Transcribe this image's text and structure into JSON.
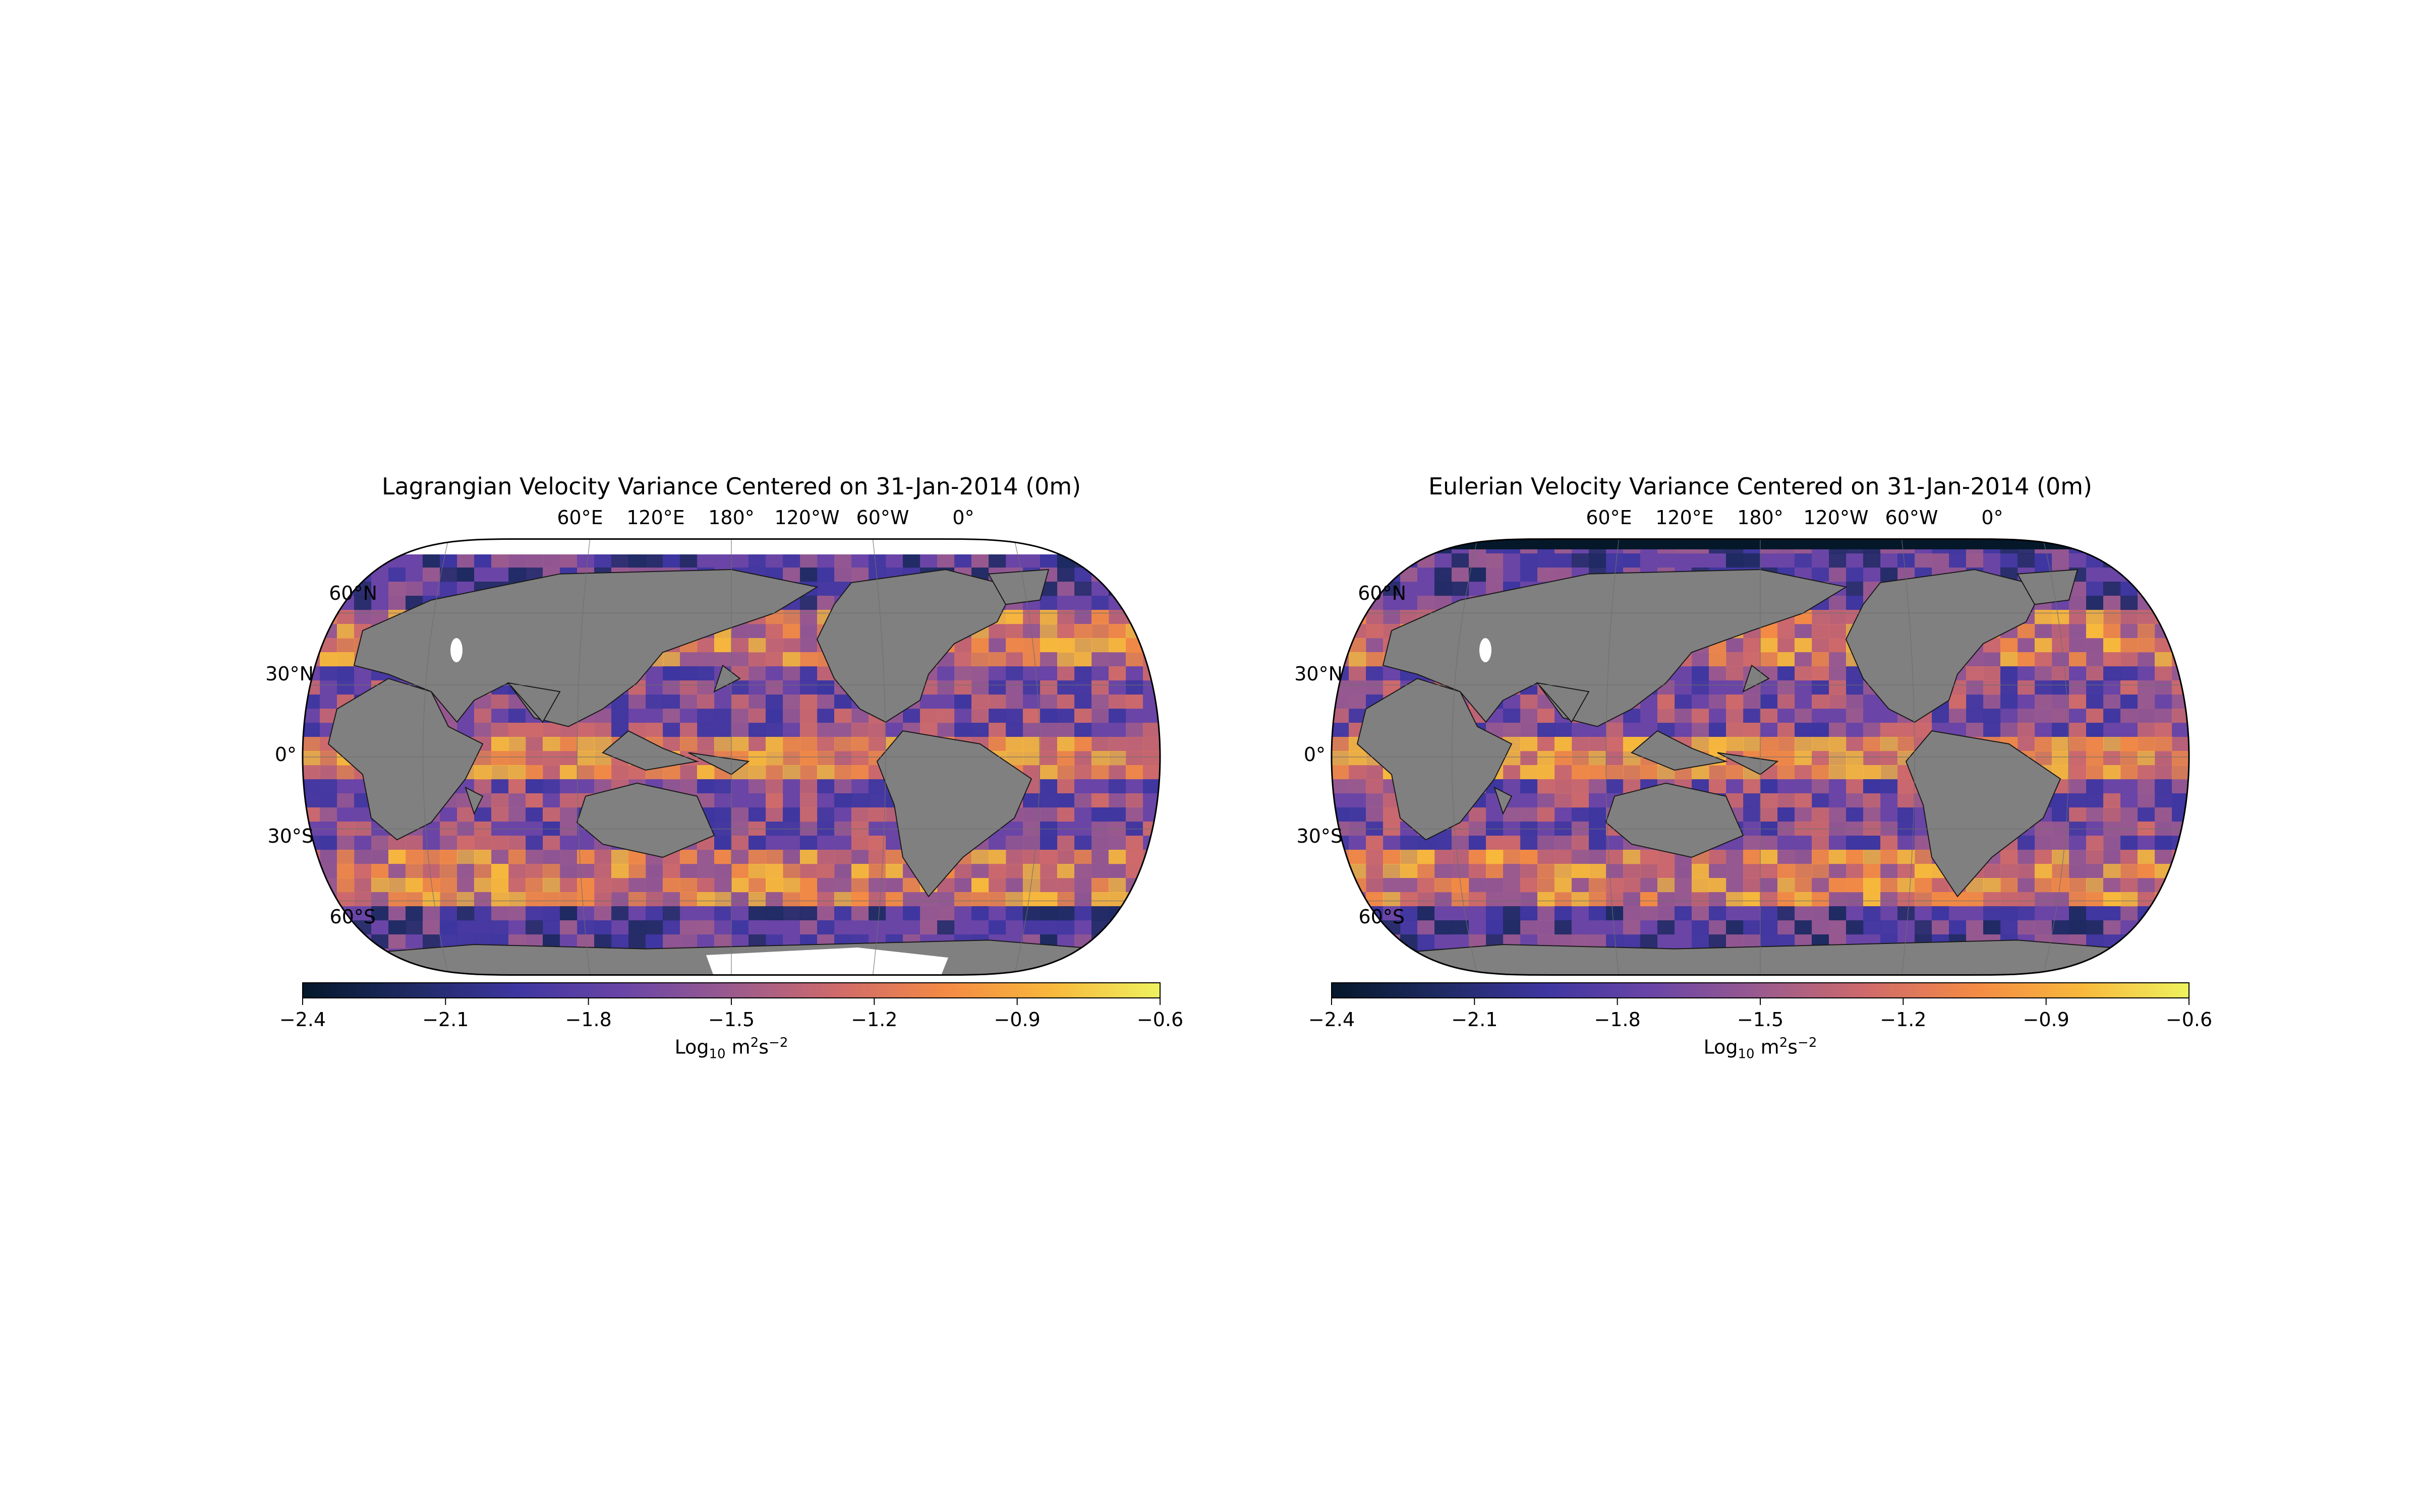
{
  "panels": [
    {
      "title": "Lagrangian Velocity Variance Centered on 31-Jan-2014 (0m)",
      "lon_ticks": [
        "60°E",
        "120°E",
        "180°",
        "120°W",
        "60°W",
        "0°"
      ],
      "lat_ticks": [
        "60°N",
        "30°N",
        "0°",
        "30°S",
        "60°S"
      ],
      "colorbar": {
        "ticks": [
          "−2.4",
          "−2.1",
          "−1.8",
          "−1.5",
          "−1.2",
          "−0.9",
          "−0.6"
        ],
        "label_base": "Log",
        "label_sub": "10",
        "label_unit": " m",
        "label_sup1": "2",
        "label_s": "s",
        "label_sup2": "−2"
      },
      "field": {
        "variable": "Lagrangian velocity variance",
        "units": "Log10 m2s-2",
        "range": [
          -2.4,
          -0.6
        ],
        "polar_data_gaps": true
      }
    },
    {
      "title": "Eulerian Velocity Variance Centered on 31-Jan-2014 (0m)",
      "lon_ticks": [
        "60°E",
        "120°E",
        "180°",
        "120°W",
        "60°W",
        "0°"
      ],
      "lat_ticks": [
        "60°N",
        "30°N",
        "0°",
        "30°S",
        "60°S"
      ],
      "colorbar": {
        "ticks": [
          "−2.4",
          "−2.1",
          "−1.8",
          "−1.5",
          "−1.2",
          "−0.9",
          "−0.6"
        ],
        "label_base": "Log",
        "label_sub": "10",
        "label_unit": " m",
        "label_sup1": "2",
        "label_s": "s",
        "label_sup2": "−2"
      },
      "field": {
        "variable": "Eulerian velocity variance",
        "units": "Log10 m2s-2",
        "range": [
          -2.4,
          -0.6
        ],
        "polar_data_gaps": false
      }
    }
  ],
  "colormap": {
    "name": "thermal",
    "stops": [
      "#04182a",
      "#1e2a62",
      "#3e36a0",
      "#6a45a6",
      "#9a5a8e",
      "#cf6a6a",
      "#f38a45",
      "#f8b83c",
      "#eef25e"
    ]
  },
  "colors": {
    "land": "#808080",
    "missing": "#ffffff",
    "grid": "#6e6e6e"
  }
}
